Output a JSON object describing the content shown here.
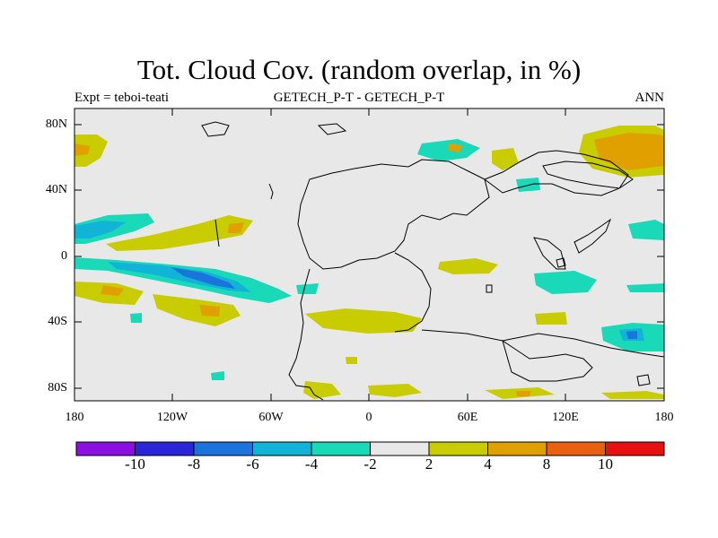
{
  "title": "Tot. Cloud Cov. (random overlap, in %)",
  "subtitle_left": "Expt = teboi-teati",
  "subtitle_center": "GETECH_P-T - GETECH_P-T",
  "subtitle_right": "ANN",
  "lat_ticks": [
    "80N",
    "40N",
    "0",
    "40S",
    "80S"
  ],
  "lon_ticks": [
    "180",
    "120W",
    "60W",
    "0",
    "60E",
    "120E",
    "180"
  ],
  "colorbar": {
    "labels": [
      "-10",
      "-8",
      "-6",
      "-4",
      "-2",
      "2",
      "4",
      "8",
      "10"
    ],
    "colors": [
      "#8a0fe0",
      "#2a25d8",
      "#1a74db",
      "#11b3d6",
      "#19d9b9",
      "#e8e8e8",
      "#c8cc00",
      "#e0a000",
      "#e86010",
      "#e81010"
    ]
  },
  "colors": {
    "land_bg": "#e8e8e8",
    "neg_2_4": "#19d9b9",
    "neg_4_6": "#11b3d6",
    "neg_6_8": "#1a74db",
    "pos_2_4": "#c8cc00",
    "pos_4_8": "#e0a000",
    "pos_8_10": "#e86010"
  }
}
